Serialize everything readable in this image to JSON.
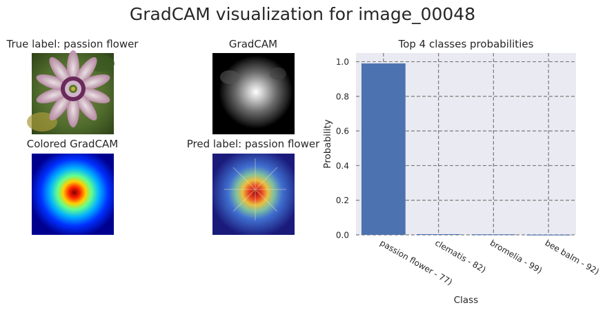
{
  "figure": {
    "suptitle": "GradCAM visualization for image_00048"
  },
  "panels": {
    "original": {
      "title": "True label: passion flower"
    },
    "gradcam": {
      "title": "GradCAM"
    },
    "colored": {
      "title": "Colored GradCAM"
    },
    "overlay": {
      "title": "Pred label: passion flower"
    }
  },
  "chart_data": {
    "type": "bar",
    "title": "Top 4 classes probabilities",
    "xlabel": "Class",
    "ylabel": "Probability",
    "categories": [
      "passion flower - 77)",
      "clematis - 82)",
      "bromelia - 99)",
      "bee balm - 92)"
    ],
    "values": [
      0.99,
      0.004,
      0.003,
      0.001
    ],
    "ylim": [
      0,
      1.05
    ],
    "yticks": [
      "0.0",
      "0.2",
      "0.4",
      "0.6",
      "0.8",
      "1.0"
    ],
    "bar_color": "#4c72b0",
    "background": "#eaeaf2",
    "grid": true
  }
}
